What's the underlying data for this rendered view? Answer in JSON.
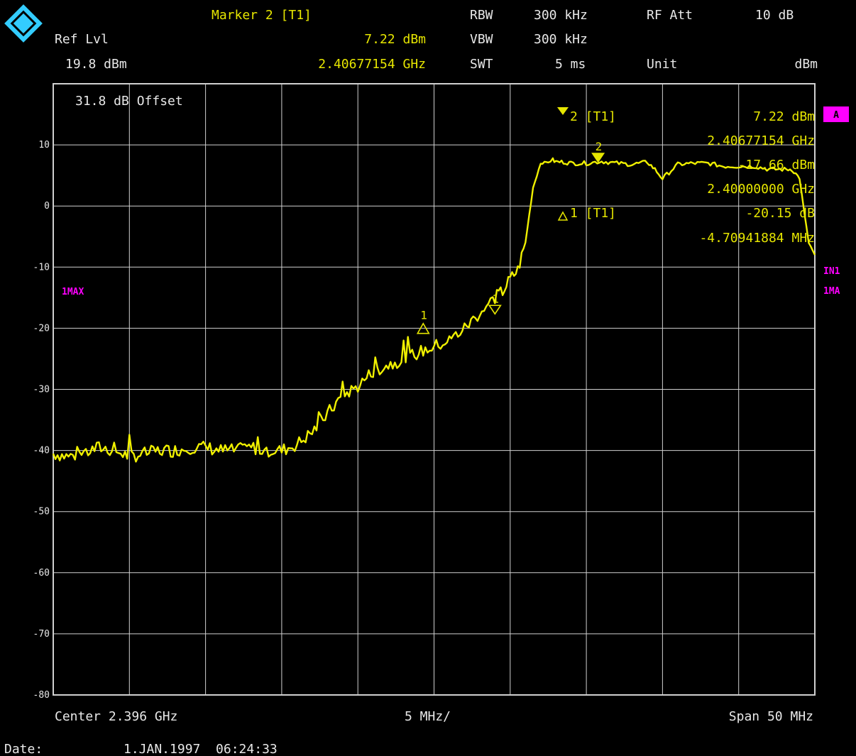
{
  "colors": {
    "background": "#000000",
    "trace": "#f0f000",
    "grid": "#d0d0d0",
    "header_text": "#e8e8e8",
    "marker_text": "#e6e600",
    "accent": "#ff00ff",
    "logo": "#33ccff"
  },
  "logo": {
    "letters": "RS",
    "icon": "rohde-schwarz-logo-icon"
  },
  "header": {
    "marker_label": "Marker 2 [T1]",
    "rbw_label": "RBW",
    "rbw_value": "300 kHz",
    "rf_att_label": "RF Att",
    "rf_att_value": "10 dB",
    "ref_lvl_label": "Ref Lvl",
    "marker_level": "7.22 dBm",
    "vbw_label": "VBW",
    "vbw_value": "300 kHz",
    "ref_lvl_value": "19.8 dBm",
    "marker_freq": "2.40677154 GHz",
    "swt_label": "SWT",
    "swt_value": "5 ms",
    "unit_label": "Unit",
    "unit_value": "dBm"
  },
  "plot": {
    "offset_text": "31.8 dB Offset",
    "trace_label": "1MAX",
    "side_badge": "A",
    "side_in1": "IN1",
    "side_1ma": "1MA",
    "marker_box": {
      "m2_label": "2 [T1]",
      "m2_level": "7.22 dBm",
      "m2_freq": "2.40677154 GHz",
      "m1_ref_level": "-17.66 dBm",
      "m1_ref_freq": "2.40000000 GHz",
      "d1_label": "1 [T1]",
      "d1_level": "-20.15 dB",
      "d1_freq": "-4.70941884 MHz"
    },
    "marker_numbers": {
      "m1": "1",
      "m2": "2",
      "d1": "1"
    }
  },
  "footer": {
    "center": "Center 2.396 GHz",
    "per_div": "5 MHz/",
    "span": "Span 50 MHz",
    "date_label": "Date:",
    "date_value": "1.JAN.1997  06:24:33"
  },
  "chart_data": {
    "type": "line",
    "x_unit": "MHz offset from center 2.396 GHz",
    "xlim": [
      -25,
      25
    ],
    "ylim": [
      -80,
      20
    ],
    "y_ticks": [
      10,
      0,
      -10,
      -20,
      -30,
      -40,
      -50,
      -60,
      -70,
      -80
    ],
    "grid": true,
    "series": [
      {
        "name": "1MAX",
        "x": [
          -25.0,
          -24.0,
          -23.0,
          -22.0,
          -21.0,
          -20.0,
          -19.0,
          -18.0,
          -17.0,
          -16.0,
          -15.0,
          -14.0,
          -13.0,
          -12.0,
          -11.0,
          -10.0,
          -9.0,
          -8.0,
          -7.0,
          -6.0,
          -5.0,
          -4.0,
          -3.0,
          -2.0,
          -1.0,
          0.0,
          1.0,
          2.0,
          3.0,
          4.0,
          4.5,
          5.0,
          5.5,
          6.0,
          6.5,
          7.0,
          7.5,
          7.8,
          8.0,
          8.5,
          9.0,
          10.0,
          11.0,
          12.0,
          13.0,
          14.0,
          14.5,
          15.0,
          16.0,
          17.0,
          18.0,
          19.0,
          20.0,
          21.0,
          22.0,
          23.0,
          23.5,
          24.0,
          24.3,
          24.6,
          25.0
        ],
        "values": [
          -40.5,
          -41,
          -40.5,
          -39.5,
          -40,
          -41,
          -40.5,
          -40,
          -40,
          -39.5,
          -39.5,
          -40,
          -40,
          -39.5,
          -40,
          -40,
          -39,
          -37,
          -34,
          -31,
          -29.5,
          -27,
          -26,
          -25,
          -24,
          -23,
          -22,
          -20,
          -17.5,
          -15,
          -14,
          -12,
          -10.5,
          -6,
          3,
          7,
          7.2,
          7.5,
          7.22,
          7.2,
          7,
          7,
          7.3,
          7,
          6.8,
          7.2,
          6,
          4.5,
          6.8,
          7,
          7,
          6.5,
          6.5,
          6.5,
          6,
          6,
          6,
          4.5,
          -1,
          -6,
          -8
        ]
      }
    ],
    "markers": [
      {
        "id": "2",
        "x": 10.77,
        "y": 7.22
      },
      {
        "id": "1",
        "x": 4.0,
        "y": -17.66
      },
      {
        "id": "delta 1",
        "x": -0.71,
        "y": -20.15
      }
    ]
  }
}
